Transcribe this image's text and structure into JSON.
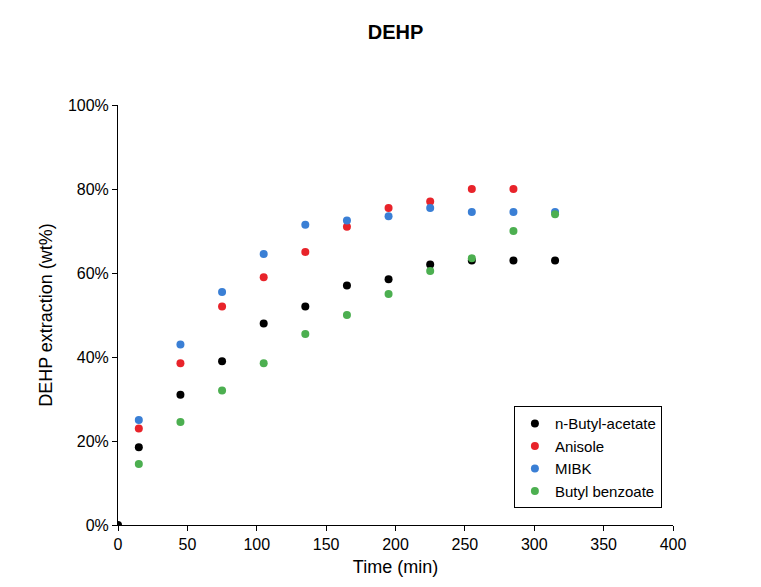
{
  "chart_data": {
    "type": "scatter",
    "title": "DEHP",
    "x_label": "Time (min)",
    "y_label": "DEHP extraction (wt%)",
    "series": [
      {
        "name": "n-Butyl-acetate",
        "color": "#000000",
        "marker": "circle",
        "x": [
          0,
          15,
          45,
          75,
          105,
          135,
          165,
          195,
          225,
          255,
          285,
          315
        ],
        "values": [
          0,
          18.5,
          31,
          39,
          48,
          52,
          57,
          58.5,
          62,
          63,
          63,
          63
        ]
      },
      {
        "name": "Anisole",
        "color": "#e8232a",
        "marker": "circle",
        "x": [
          15,
          45,
          75,
          105,
          135,
          165,
          195,
          225,
          255,
          285
        ],
        "values": [
          23,
          38.5,
          52,
          59,
          65,
          71,
          75.5,
          77,
          80,
          80
        ]
      },
      {
        "name": "MIBK",
        "color": "#3a7fd5",
        "marker": "circle",
        "x": [
          15,
          45,
          75,
          105,
          135,
          165,
          195,
          225,
          255,
          285,
          315
        ],
        "values": [
          25,
          43,
          55.5,
          64.5,
          71.5,
          72.5,
          73.5,
          75.5,
          74.5,
          74.5,
          74.5
        ]
      },
      {
        "name": "Butyl benzoate",
        "color": "#4caf50",
        "marker": "circle",
        "x": [
          15,
          45,
          75,
          105,
          135,
          165,
          195,
          225,
          255,
          285,
          315
        ],
        "values": [
          14.5,
          24.5,
          32,
          38.5,
          45.5,
          50,
          55,
          60.5,
          63.5,
          70,
          74
        ]
      }
    ],
    "xlim": [
      0,
      400
    ],
    "xticks": [
      0,
      50,
      100,
      150,
      200,
      250,
      300,
      350,
      400
    ],
    "ylim": [
      0,
      100
    ],
    "yticks": [
      {
        "value": 0,
        "label": "0%"
      },
      {
        "value": 20,
        "label": "20%"
      },
      {
        "value": 40,
        "label": "40%"
      },
      {
        "value": 60,
        "label": "60%"
      },
      {
        "value": 80,
        "label": "80%"
      },
      {
        "value": 100,
        "label": "100%"
      }
    ],
    "grid": false,
    "legend": "bottom right"
  }
}
